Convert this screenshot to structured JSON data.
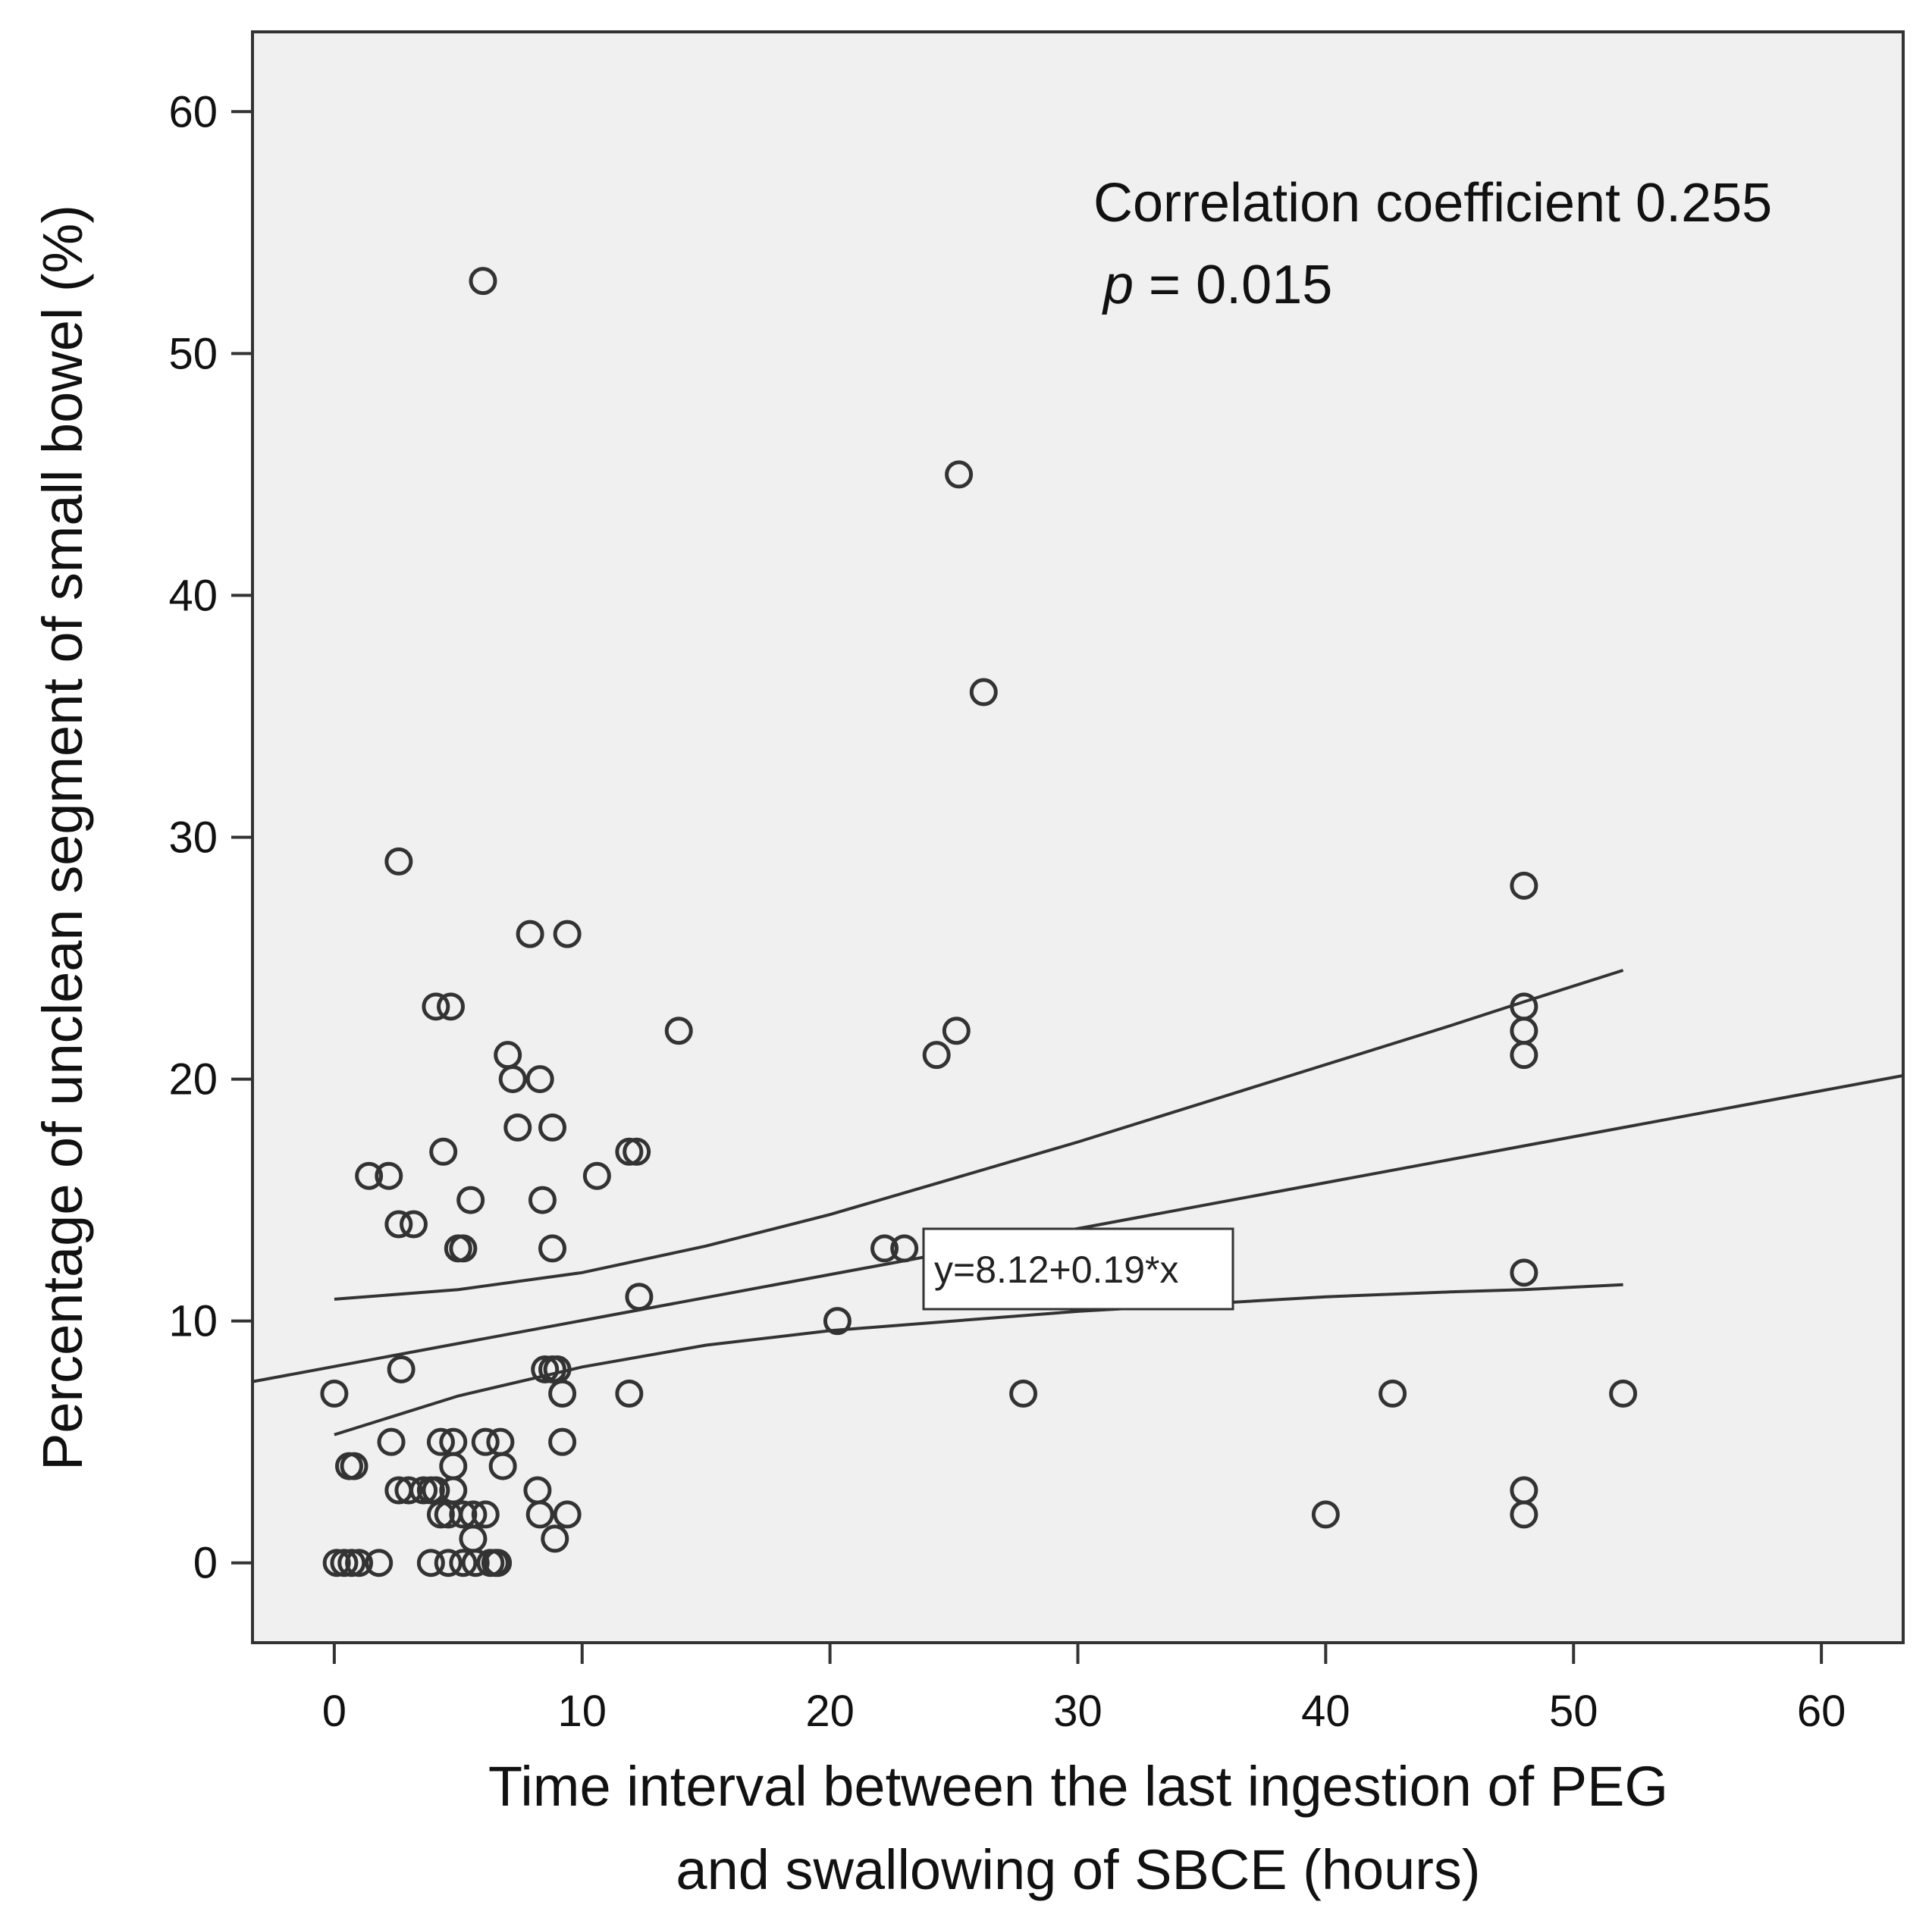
{
  "chart_data": {
    "type": "scatter",
    "xlabel": [
      "Time interval between the last ingestion of PEG",
      "and swallowing of SBCE (hours)"
    ],
    "ylabel": "Percentage of unclean segment of small bowel (%)",
    "xlim": [
      -3.3,
      63.3
    ],
    "ylim": [
      -3.3,
      63.3
    ],
    "xticks": [
      0,
      10,
      20,
      30,
      40,
      50,
      60
    ],
    "yticks": [
      0,
      10,
      20,
      30,
      40,
      50,
      60
    ],
    "grid": false,
    "background": "#f0f0f0",
    "annotation": {
      "line1": "Correlation coefficient 0.255",
      "p_symbol": "p",
      "p_rest": " = 0.015"
    },
    "fit": {
      "label": "y=8.12+0.19*x",
      "intercept": 8.12,
      "slope": 0.19,
      "x_range": [
        -3.3,
        63.3
      ]
    },
    "confidence_upper": {
      "x": [
        0,
        5,
        10,
        15,
        20,
        25,
        30,
        35,
        40,
        45,
        48,
        52
      ],
      "y": [
        10.9,
        11.3,
        12.0,
        13.1,
        14.4,
        15.9,
        17.4,
        19.0,
        20.6,
        22.2,
        23.2,
        24.5
      ]
    },
    "confidence_lower": {
      "x": [
        0,
        5,
        10,
        15,
        20,
        25,
        30,
        35,
        40,
        45,
        48,
        52
      ],
      "y": [
        5.3,
        6.9,
        8.1,
        9.0,
        9.6,
        10.0,
        10.4,
        10.7,
        11.0,
        11.2,
        11.3,
        11.5
      ]
    },
    "points": [
      {
        "x": 6.0,
        "y": 53
      },
      {
        "x": 25.2,
        "y": 45
      },
      {
        "x": 26.2,
        "y": 36
      },
      {
        "x": 2.6,
        "y": 29
      },
      {
        "x": 48.0,
        "y": 28
      },
      {
        "x": 7.9,
        "y": 26
      },
      {
        "x": 9.4,
        "y": 26
      },
      {
        "x": 4.1,
        "y": 23
      },
      {
        "x": 4.7,
        "y": 23
      },
      {
        "x": 48.0,
        "y": 23
      },
      {
        "x": 13.9,
        "y": 22
      },
      {
        "x": 25.1,
        "y": 22
      },
      {
        "x": 48.0,
        "y": 22
      },
      {
        "x": 7.0,
        "y": 21
      },
      {
        "x": 24.3,
        "y": 21
      },
      {
        "x": 48.0,
        "y": 21
      },
      {
        "x": 7.2,
        "y": 20
      },
      {
        "x": 8.3,
        "y": 20
      },
      {
        "x": 7.4,
        "y": 18
      },
      {
        "x": 8.8,
        "y": 18
      },
      {
        "x": 4.4,
        "y": 17
      },
      {
        "x": 11.9,
        "y": 17
      },
      {
        "x": 12.2,
        "y": 17
      },
      {
        "x": 1.4,
        "y": 16
      },
      {
        "x": 2.2,
        "y": 16
      },
      {
        "x": 10.6,
        "y": 16
      },
      {
        "x": 2.6,
        "y": 14
      },
      {
        "x": 3.2,
        "y": 14
      },
      {
        "x": 5.5,
        "y": 15
      },
      {
        "x": 8.4,
        "y": 15
      },
      {
        "x": 5.0,
        "y": 13
      },
      {
        "x": 5.2,
        "y": 13
      },
      {
        "x": 8.8,
        "y": 13
      },
      {
        "x": 22.2,
        "y": 13
      },
      {
        "x": 23.0,
        "y": 13
      },
      {
        "x": 12.3,
        "y": 11
      },
      {
        "x": 48.0,
        "y": 12
      },
      {
        "x": 20.3,
        "y": 10
      },
      {
        "x": 2.7,
        "y": 8
      },
      {
        "x": 8.5,
        "y": 8
      },
      {
        "x": 8.8,
        "y": 8
      },
      {
        "x": 9.0,
        "y": 8
      },
      {
        "x": 0.0,
        "y": 7
      },
      {
        "x": 9.2,
        "y": 7
      },
      {
        "x": 11.9,
        "y": 7
      },
      {
        "x": 27.8,
        "y": 7
      },
      {
        "x": 42.7,
        "y": 7
      },
      {
        "x": 52.0,
        "y": 7
      },
      {
        "x": 2.3,
        "y": 5
      },
      {
        "x": 4.3,
        "y": 5
      },
      {
        "x": 4.8,
        "y": 5
      },
      {
        "x": 6.1,
        "y": 5
      },
      {
        "x": 6.7,
        "y": 5
      },
      {
        "x": 9.2,
        "y": 5
      },
      {
        "x": 0.6,
        "y": 4
      },
      {
        "x": 0.8,
        "y": 4
      },
      {
        "x": 4.8,
        "y": 4
      },
      {
        "x": 6.8,
        "y": 4
      },
      {
        "x": 2.6,
        "y": 3
      },
      {
        "x": 3.0,
        "y": 3
      },
      {
        "x": 3.6,
        "y": 3
      },
      {
        "x": 3.9,
        "y": 3
      },
      {
        "x": 4.1,
        "y": 3
      },
      {
        "x": 4.8,
        "y": 3
      },
      {
        "x": 8.2,
        "y": 3
      },
      {
        "x": 48.0,
        "y": 3
      },
      {
        "x": 4.3,
        "y": 2
      },
      {
        "x": 4.6,
        "y": 2
      },
      {
        "x": 5.2,
        "y": 2
      },
      {
        "x": 5.6,
        "y": 2
      },
      {
        "x": 6.1,
        "y": 2
      },
      {
        "x": 8.3,
        "y": 2
      },
      {
        "x": 9.4,
        "y": 2
      },
      {
        "x": 40.0,
        "y": 2
      },
      {
        "x": 48.0,
        "y": 2
      },
      {
        "x": 5.6,
        "y": 1
      },
      {
        "x": 8.9,
        "y": 1
      },
      {
        "x": 0.1,
        "y": 0
      },
      {
        "x": 0.4,
        "y": 0
      },
      {
        "x": 0.7,
        "y": 0
      },
      {
        "x": 1.0,
        "y": 0
      },
      {
        "x": 1.8,
        "y": 0
      },
      {
        "x": 3.9,
        "y": 0
      },
      {
        "x": 4.6,
        "y": 0
      },
      {
        "x": 5.2,
        "y": 0
      },
      {
        "x": 5.7,
        "y": 0
      },
      {
        "x": 6.3,
        "y": 0
      },
      {
        "x": 6.5,
        "y": 0
      },
      {
        "x": 6.6,
        "y": 0
      }
    ]
  }
}
